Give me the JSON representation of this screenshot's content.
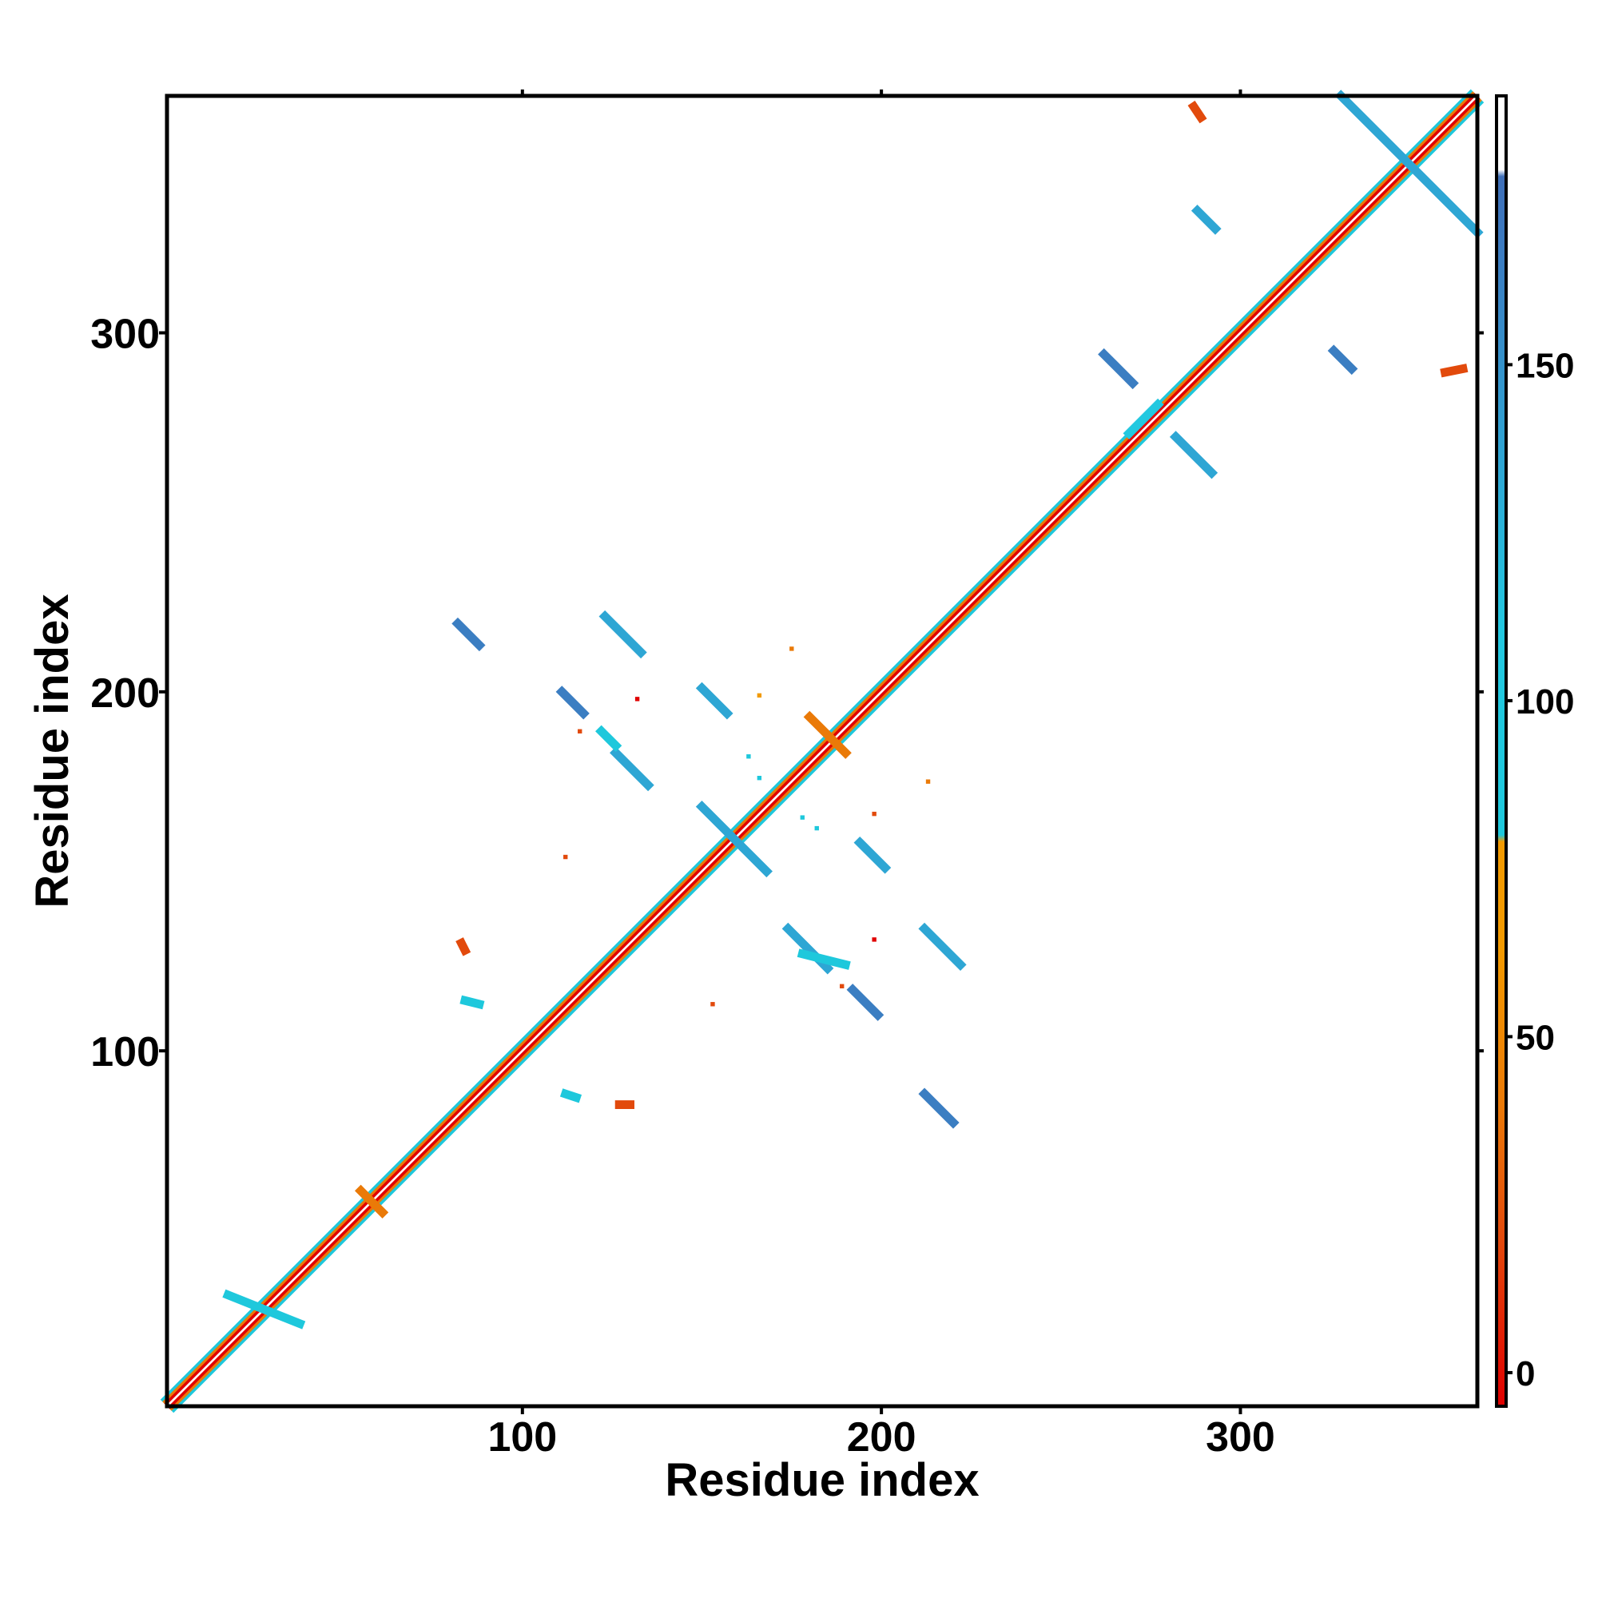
{
  "chart_data": {
    "type": "heatmap",
    "title": "",
    "xlabel": "Residue index",
    "ylabel": "Residue index",
    "xlim": [
      1,
      366
    ],
    "ylim": [
      1,
      366
    ],
    "x_ticks": [
      100,
      200,
      300
    ],
    "y_ticks": [
      100,
      200,
      300
    ],
    "grid": false,
    "colorbar": {
      "range": [
        -5,
        190
      ],
      "ticks": [
        0,
        50,
        100,
        150
      ],
      "stops": [
        {
          "value": -5,
          "color": "#e00000"
        },
        {
          "value": 20,
          "color": "#e24a0c"
        },
        {
          "value": 40,
          "color": "#ea7a08"
        },
        {
          "value": 63,
          "color": "#f29a00"
        },
        {
          "value": 79,
          "color": "#f29a00"
        },
        {
          "value": 80,
          "color": "#1ec8dc"
        },
        {
          "value": 110,
          "color": "#22c8e0"
        },
        {
          "value": 135,
          "color": "#2ea6d4"
        },
        {
          "value": 165,
          "color": "#3b7ec2"
        },
        {
          "value": 178,
          "color": "#3f6fb8"
        },
        {
          "value": 179,
          "color": "#ffffff"
        },
        {
          "value": 190,
          "color": "#ffffff"
        }
      ]
    },
    "diagonal": {
      "from": 1,
      "to": 366
    },
    "segments": [
      {
        "x1": 82,
        "y1": 219,
        "x2": 88,
        "y2": 213,
        "value": 165
      },
      {
        "x1": 123,
        "y1": 221,
        "x2": 133,
        "y2": 211,
        "value": 140
      },
      {
        "x1": 111,
        "y1": 200,
        "x2": 117,
        "y2": 194,
        "value": 165
      },
      {
        "x1": 150,
        "y1": 201,
        "x2": 157,
        "y2": 194,
        "value": 160
      },
      {
        "x1": 126,
        "y1": 183,
        "x2": 135,
        "y2": 174,
        "value": 160
      },
      {
        "x1": 150,
        "y1": 168,
        "x2": 168,
        "y2": 150,
        "value": 160
      },
      {
        "x1": 194,
        "y1": 158,
        "x2": 201,
        "y2": 151,
        "value": 160
      },
      {
        "x1": 174,
        "y1": 134,
        "x2": 185,
        "y2": 123,
        "value": 155
      },
      {
        "x1": 212,
        "y1": 134,
        "x2": 222,
        "y2": 124,
        "value": 150
      },
      {
        "x1": 192,
        "y1": 117,
        "x2": 199,
        "y2": 110,
        "value": 165
      },
      {
        "x1": 212,
        "y1": 88,
        "x2": 220,
        "y2": 80,
        "value": 165
      },
      {
        "x1": 262,
        "y1": 294,
        "x2": 270,
        "y2": 286,
        "value": 165
      },
      {
        "x1": 282,
        "y1": 271,
        "x2": 292,
        "y2": 261,
        "value": 160
      },
      {
        "x1": 277,
        "y1": 280,
        "x2": 269,
        "y2": 272,
        "value": 110
      },
      {
        "x1": 288,
        "y1": 334,
        "x2": 293,
        "y2": 329,
        "value": 160
      },
      {
        "x1": 326,
        "y1": 295,
        "x2": 331,
        "y2": 290,
        "value": 165
      },
      {
        "x1": 328,
        "y1": 366,
        "x2": 366,
        "y2": 328,
        "value": 140
      },
      {
        "x1": 122,
        "y1": 189,
        "x2": 126,
        "y2": 185,
        "value": 105
      },
      {
        "x1": 178,
        "y1": 127,
        "x2": 190,
        "y2": 124,
        "value": 100
      },
      {
        "x1": 84,
        "y1": 114,
        "x2": 88,
        "y2": 113,
        "value": 100
      },
      {
        "x1": 112,
        "y1": 88,
        "x2": 115,
        "y2": 87,
        "value": 100
      },
      {
        "x1": 180,
        "y1": 193,
        "x2": 190,
        "y2": 183,
        "value": 60
      },
      {
        "x1": 18,
        "y1": 32,
        "x2": 38,
        "y2": 24,
        "value": 95
      },
      {
        "x1": 55,
        "y1": 61,
        "x2": 61,
        "y2": 55,
        "value": 45
      },
      {
        "x1": 287,
        "y1": 363,
        "x2": 289,
        "y2": 360,
        "value": 30
      },
      {
        "x1": 357,
        "y1": 289,
        "x2": 362,
        "y2": 290,
        "value": 30
      },
      {
        "x1": 127,
        "y1": 85,
        "x2": 130,
        "y2": 85,
        "value": 30
      },
      {
        "x1": 83,
        "y1": 130,
        "x2": 84,
        "y2": 128,
        "value": 30
      }
    ],
    "points": [
      {
        "x": 175,
        "y": 212,
        "value": 55
      },
      {
        "x": 132,
        "y": 198,
        "value": 5
      },
      {
        "x": 166,
        "y": 199,
        "value": 65
      },
      {
        "x": 116,
        "y": 189,
        "value": 35
      },
      {
        "x": 163,
        "y": 182,
        "value": 95
      },
      {
        "x": 166,
        "y": 176,
        "value": 95
      },
      {
        "x": 178,
        "y": 165,
        "value": 95
      },
      {
        "x": 182,
        "y": 162,
        "value": 95
      },
      {
        "x": 213,
        "y": 175,
        "value": 60
      },
      {
        "x": 198,
        "y": 166,
        "value": 30
      },
      {
        "x": 112,
        "y": 154,
        "value": 30
      },
      {
        "x": 198,
        "y": 131,
        "value": 10
      },
      {
        "x": 189,
        "y": 118,
        "value": 30
      },
      {
        "x": 153,
        "y": 113,
        "value": 30
      }
    ]
  }
}
